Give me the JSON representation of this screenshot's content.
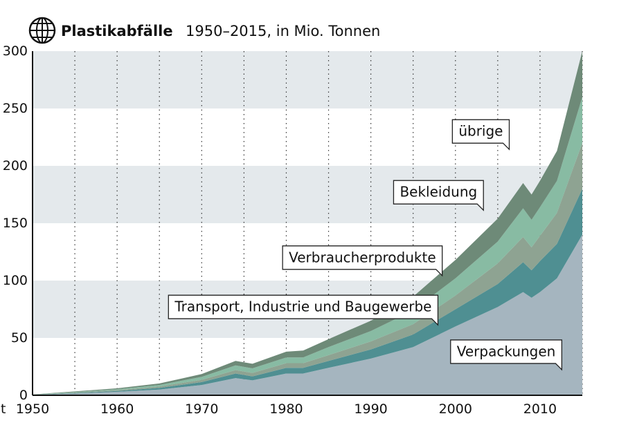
{
  "header": {
    "title": "Plastikabfälle",
    "subtitle": "1950–2015, in Mio. Tonnen",
    "icon": "globe-icon"
  },
  "chart_data": {
    "type": "area",
    "stacked": true,
    "title": "Plastikabfälle",
    "subtitle": "1950–2015, in Mio. Tonnen",
    "unit_label": "t",
    "xlim": [
      1950,
      2015
    ],
    "ylim": [
      0,
      300
    ],
    "x_ticks": [
      1950,
      1960,
      1970,
      1980,
      1990,
      2000,
      2010
    ],
    "y_ticks": [
      0,
      50,
      100,
      150,
      200,
      250,
      300
    ],
    "grid": "alternating horizontal bands, dotted vertical lines every 5 years",
    "x": [
      1950,
      1955,
      1960,
      1965,
      1970,
      1974,
      1976,
      1980,
      1982,
      1985,
      1990,
      1995,
      2000,
      2005,
      2008,
      2009,
      2010,
      2012,
      2015
    ],
    "series": [
      {
        "name": "Verpackungen",
        "color": "#a5b5bf",
        "values": [
          0.3,
          1.5,
          3,
          5,
          9,
          15,
          13,
          19,
          19,
          24,
          32,
          42,
          60,
          77,
          90,
          85,
          90,
          102,
          140
        ]
      },
      {
        "name": "Transport, Industrie und Baugewerbe",
        "color": "#4f8f92",
        "values": [
          0.1,
          0.5,
          0.8,
          1.5,
          2.5,
          4,
          3.5,
          5,
          5,
          6,
          8,
          11,
          15,
          20,
          26,
          24,
          27,
          30,
          40
        ]
      },
      {
        "name": "Verbraucherprodukte",
        "color": "#8ea392",
        "values": [
          0.1,
          0.4,
          0.7,
          1.2,
          2,
          3,
          3,
          4,
          4,
          5,
          7,
          9,
          12,
          18,
          22,
          20,
          22,
          27,
          40
        ]
      },
      {
        "name": "Bekleidung",
        "color": "#88bba3",
        "values": [
          0.1,
          0.5,
          0.8,
          1.3,
          2.5,
          4,
          4,
          5,
          5,
          7,
          9,
          12,
          15,
          19,
          25,
          24,
          25,
          28,
          40
        ]
      },
      {
        "name": "übrige",
        "color": "#6e8a78",
        "values": [
          0.1,
          0.5,
          0.8,
          1.3,
          2.5,
          4,
          4,
          5,
          6,
          7,
          9,
          12,
          16,
          20,
          22,
          22,
          23,
          26,
          40
        ]
      }
    ],
    "labels": [
      {
        "text": "übrige",
        "x": 2003,
        "y": 230
      },
      {
        "text": "Bekleidung",
        "x": 1998,
        "y": 177
      },
      {
        "text": "Verbraucherprodukte",
        "x": 1989,
        "y": 120
      },
      {
        "text": "Transport, Industrie und Baugewerbe",
        "x": 1982,
        "y": 77
      },
      {
        "text": "Verpackungen",
        "x": 2006,
        "y": 38
      }
    ]
  }
}
